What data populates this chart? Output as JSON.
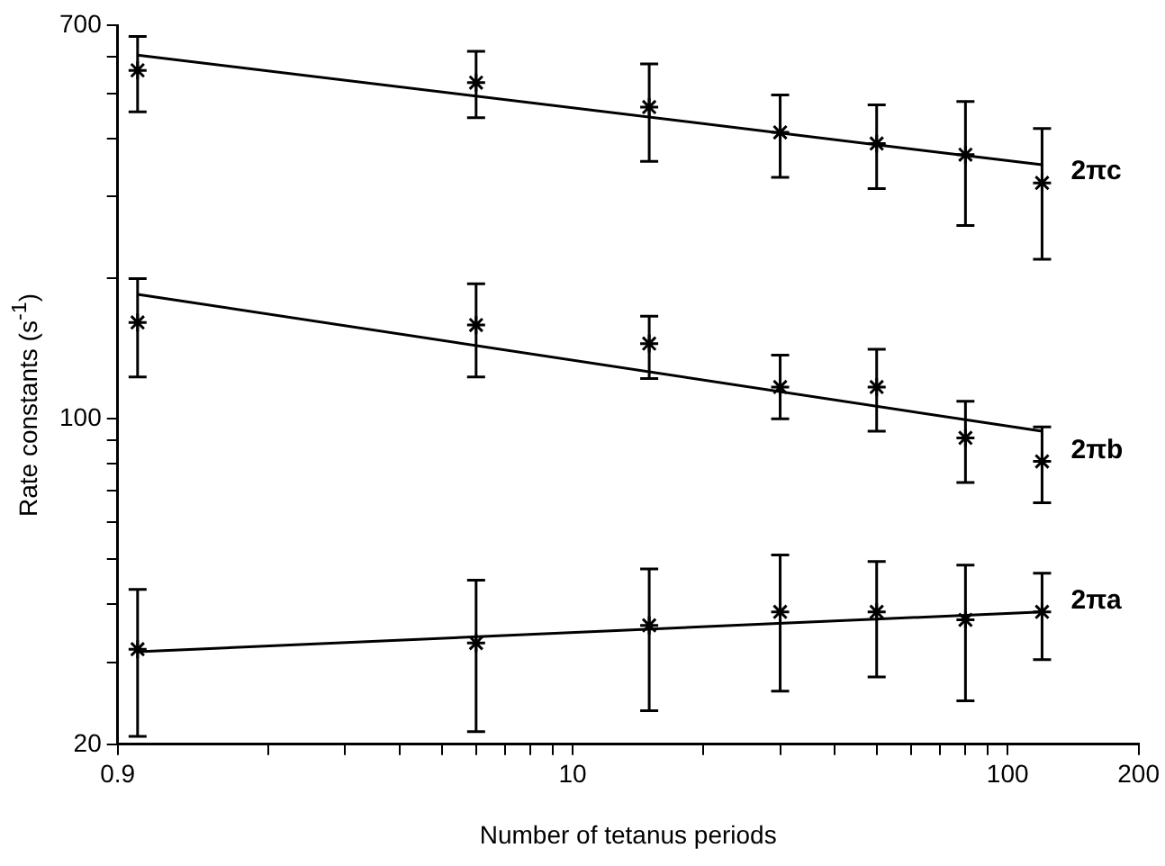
{
  "chart_data": {
    "type": "scatter",
    "xlabel": "Number of tetanus periods",
    "ylabel": "Rate constants (s$^{-1}$)",
    "log": "xy",
    "grid": false,
    "legend": false,
    "marker": "cross",
    "xlim": [
      0.9,
      200
    ],
    "xticks": [
      0.9,
      {
        "value": 2,
        "label": null
      },
      {
        "value": 3,
        "label": null
      },
      {
        "value": 4,
        "label": null
      },
      {
        "value": 5,
        "label": null
      },
      {
        "value": 6,
        "label": null
      },
      {
        "value": 7,
        "label": null
      },
      {
        "value": 8,
        "label": null
      },
      {
        "value": 9,
        "label": null
      },
      10,
      {
        "value": 20,
        "label": null
      },
      {
        "value": 30,
        "label": null
      },
      {
        "value": 40,
        "label": null
      },
      {
        "value": 50,
        "label": null
      },
      {
        "value": 60,
        "label": null
      },
      {
        "value": 70,
        "label": null
      },
      {
        "value": 80,
        "label": null
      },
      {
        "value": 90,
        "label": null
      },
      100,
      200
    ],
    "ylim": [
      20,
      700
    ],
    "yticks": [
      20,
      {
        "value": 30,
        "label": null
      },
      {
        "value": 40,
        "label": null
      },
      {
        "value": 50,
        "label": null
      },
      {
        "value": 60,
        "label": null
      },
      {
        "value": 70,
        "label": null
      },
      {
        "value": 80,
        "label": null
      },
      {
        "value": 90,
        "label": null
      },
      100,
      {
        "value": 200,
        "label": null
      },
      {
        "value": 300,
        "label": null
      },
      {
        "value": 400,
        "label": null
      },
      {
        "value": 500,
        "label": null
      },
      {
        "value": 600,
        "label": null
      },
      700
    ],
    "series": [
      {
        "name": "2πc",
        "type": "scatter",
        "color": "#000000",
        "x": [
          1,
          6,
          15,
          30,
          50,
          80,
          120
        ],
        "values": [
          560,
          527,
          467,
          412,
          390,
          369,
          321
        ],
        "errors": [
          [
            456,
            662
          ],
          [
            443,
            615
          ],
          [
            357,
            578
          ],
          [
            330,
            496
          ],
          [
            312,
            472
          ],
          [
            260,
            480
          ],
          [
            220,
            420
          ]
        ]
      },
      {
        "type": "line",
        "marker": "none",
        "color": "#000000",
        "x": [
          1,
          120
        ],
        "values": [
          604,
          351
        ]
      },
      {
        "name": "2πb",
        "type": "scatter",
        "color": "#000000",
        "x": [
          1,
          6,
          15,
          30,
          50,
          80,
          120
        ],
        "values": [
          161,
          159,
          145,
          117,
          117,
          91,
          81
        ],
        "errors": [
          [
            123,
            200
          ],
          [
            123,
            195
          ],
          [
            122,
            166
          ],
          [
            100,
            137
          ],
          [
            94,
            141
          ],
          [
            73,
            109
          ],
          [
            66,
            96
          ]
        ]
      },
      {
        "type": "line",
        "marker": "none",
        "color": "#000000",
        "x": [
          1,
          120
        ],
        "values": [
          185,
          94
        ]
      },
      {
        "name": "2πa",
        "type": "scatter",
        "color": "#000000",
        "x": [
          1,
          6,
          15,
          30,
          50,
          80,
          120
        ],
        "values": [
          32,
          33,
          36,
          38.5,
          38.5,
          37,
          38.5
        ],
        "errors": [
          [
            20.8,
            43
          ],
          [
            21.3,
            45
          ],
          [
            23.6,
            47.6
          ],
          [
            26,
            51
          ],
          [
            27.9,
            49.4
          ],
          [
            24.8,
            48.5
          ],
          [
            30.4,
            46.6
          ]
        ]
      },
      {
        "type": "line",
        "marker": "none",
        "color": "#000000",
        "x": [
          1,
          120
        ],
        "values": [
          31.6,
          38.5
        ]
      }
    ]
  }
}
